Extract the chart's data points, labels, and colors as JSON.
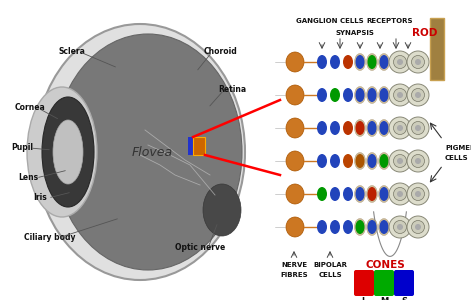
{
  "bg_color": "#ffffff",
  "fovea_text": "Flovea",
  "cone_colors": [
    "#dd0000",
    "#00aa00",
    "#0000cc"
  ],
  "cone_labels": [
    "L",
    "M",
    "S"
  ],
  "rod_bar_color": "#a08040",
  "rod_bar_edge": "#c8a050"
}
